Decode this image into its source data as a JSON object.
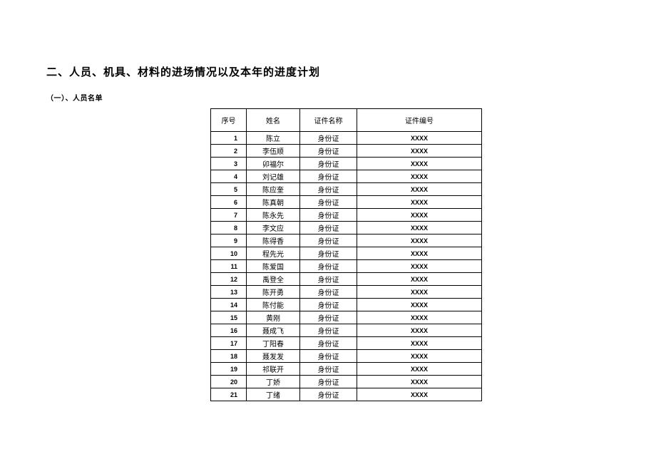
{
  "sectionTitle": "二、人员、机具、材料的进场情况以及本年的进度计划",
  "subsectionTitle": "（一）、人员名单",
  "table": {
    "headers": {
      "index": "序号",
      "name": "姓名",
      "certType": "证件名称",
      "certNo": "证件编号"
    },
    "rows": [
      {
        "index": "1",
        "name": "陈立",
        "certType": "身份证",
        "certNo": "XXXX"
      },
      {
        "index": "2",
        "name": "李伍顺",
        "certType": "身份证",
        "certNo": "XXXX"
      },
      {
        "index": "3",
        "name": "卯福尔",
        "certType": "身份证",
        "certNo": "XXXX"
      },
      {
        "index": "4",
        "name": "刘记雄",
        "certType": "身份证",
        "certNo": "XXXX"
      },
      {
        "index": "5",
        "name": "陈应奎",
        "certType": "身份证",
        "certNo": "XXXX"
      },
      {
        "index": "6",
        "name": "陈真朝",
        "certType": "身份证",
        "certNo": "XXXX"
      },
      {
        "index": "7",
        "name": "陈永先",
        "certType": "身份证",
        "certNo": "XXXX"
      },
      {
        "index": "8",
        "name": "李文应",
        "certType": "身份证",
        "certNo": "XXXX"
      },
      {
        "index": "9",
        "name": "陈得香",
        "certType": "身份证",
        "certNo": "XXXX"
      },
      {
        "index": "10",
        "name": "程先光",
        "certType": "身份证",
        "certNo": "XXXX"
      },
      {
        "index": "11",
        "name": "陈爱国",
        "certType": "身份证",
        "certNo": "XXXX"
      },
      {
        "index": "12",
        "name": "禹登全",
        "certType": "身份证",
        "certNo": "XXXX"
      },
      {
        "index": "13",
        "name": "陈开勇",
        "certType": "身份证",
        "certNo": "XXXX"
      },
      {
        "index": "14",
        "name": "陈付能",
        "certType": "身份证",
        "certNo": "XXXX"
      },
      {
        "index": "15",
        "name": "黄刚",
        "certType": "身份证",
        "certNo": "XXXX"
      },
      {
        "index": "16",
        "name": "聂成飞",
        "certType": "身份证",
        "certNo": "XXXX"
      },
      {
        "index": "17",
        "name": "丁阳春",
        "certType": "身份证",
        "certNo": "XXXX"
      },
      {
        "index": "18",
        "name": "聂发发",
        "certType": "身份证",
        "certNo": "XXXX"
      },
      {
        "index": "19",
        "name": "祁联开",
        "certType": "身份证",
        "certNo": "XXXX"
      },
      {
        "index": "20",
        "name": "丁娇",
        "certType": "身份证",
        "certNo": "XXXX"
      },
      {
        "index": "21",
        "name": "丁绪",
        "certType": "身份证",
        "certNo": "XXXX"
      }
    ]
  }
}
